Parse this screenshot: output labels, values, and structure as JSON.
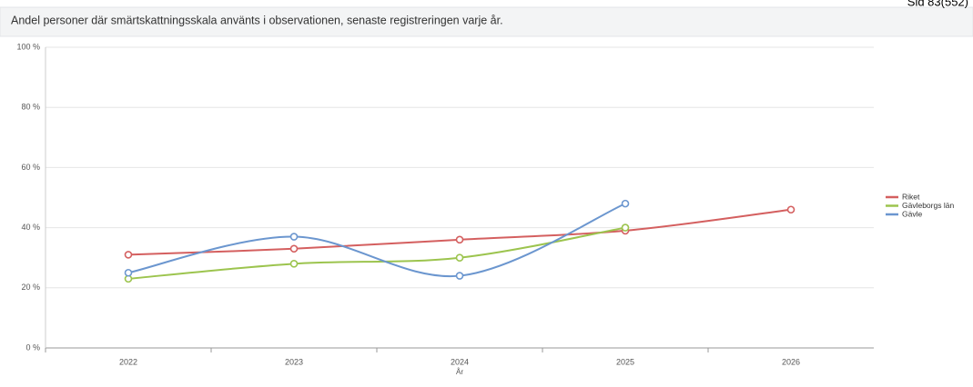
{
  "page_label": "Sid 83(552)",
  "chart_data": {
    "type": "line",
    "title": "Andel personer där smärtskattningsskala använts i observationen, senaste registreringen varje år.",
    "x_label": "År",
    "categories": [
      "2022",
      "2023",
      "2024",
      "2025",
      "2026"
    ],
    "series": [
      {
        "name": "Riket",
        "color": "#d45f5f",
        "values": [
          31,
          33,
          36,
          39,
          46
        ]
      },
      {
        "name": "Gävleborgs län",
        "color": "#9cc44e",
        "values": [
          23,
          28,
          30,
          40,
          null
        ]
      },
      {
        "name": "Gävle",
        "color": "#6b96cf",
        "values": [
          25,
          37,
          24,
          48,
          null
        ]
      }
    ],
    "ylim": [
      0,
      100
    ],
    "yticks": [
      {
        "value": 0,
        "label": "0 %"
      },
      {
        "value": 20,
        "label": "20 %"
      },
      {
        "value": 40,
        "label": "40 %"
      },
      {
        "value": 60,
        "label": "60 %"
      },
      {
        "value": 80,
        "label": "80 %"
      },
      {
        "value": 100,
        "label": "100 %"
      }
    ],
    "grid": true,
    "smooth": true,
    "legend": "right"
  }
}
